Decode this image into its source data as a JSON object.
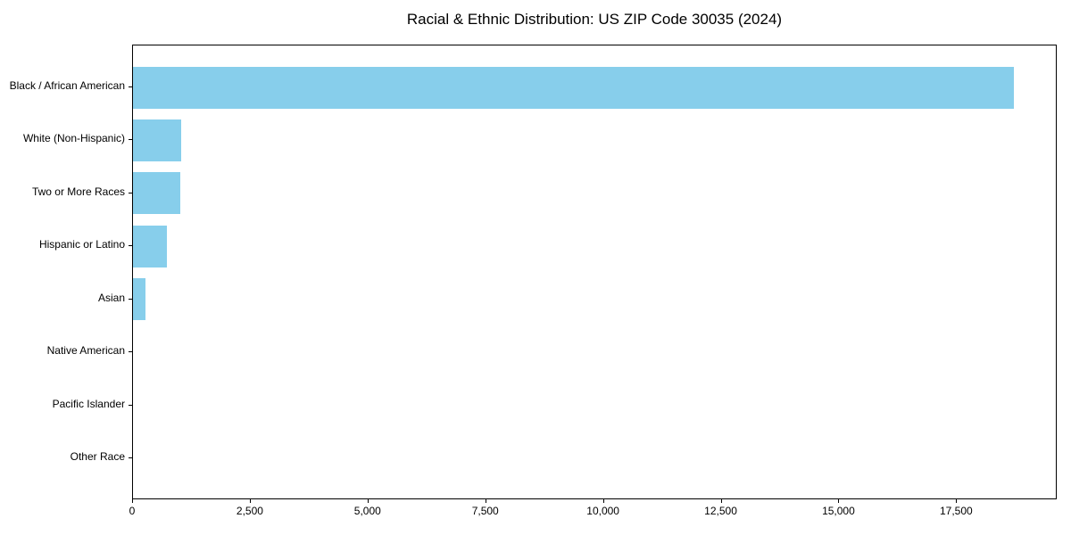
{
  "title": "Racial & Ethnic Distribution: US ZIP Code 30035 (2024)",
  "chart_data": {
    "type": "bar",
    "orientation": "horizontal",
    "title": "Racial & Ethnic Distribution: US ZIP Code 30035 (2024)",
    "xlabel": "",
    "ylabel": "",
    "categories": [
      "Black / African American",
      "White (Non-Hispanic)",
      "Two or More Races",
      "Hispanic or Latino",
      "Asian",
      "Native American",
      "Pacific Islander",
      "Other Race"
    ],
    "values": [
      18700,
      1020,
      1000,
      720,
      260,
      0,
      0,
      0
    ],
    "xlim": [
      0,
      19635
    ],
    "x_ticks": [
      0,
      2500,
      5000,
      7500,
      10000,
      12500,
      15000,
      17500
    ],
    "x_tick_labels": [
      "0",
      "2,500",
      "5,000",
      "7,500",
      "10,000",
      "12,500",
      "15,000",
      "17,500"
    ],
    "bar_color": "#87CEEB",
    "spine_color": "#000000",
    "grid": false,
    "legend": "none"
  }
}
